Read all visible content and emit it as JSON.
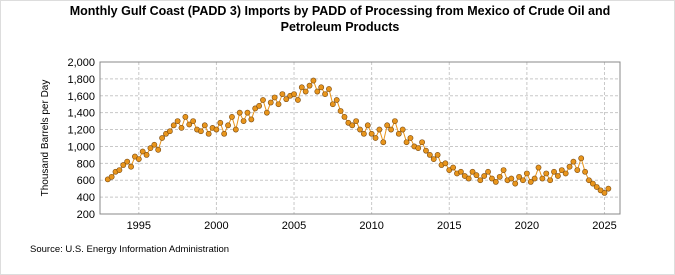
{
  "chart_data": {
    "type": "line",
    "title": "Monthly Gulf Coast (PADD 3) Imports by PADD of Processing from Mexico of Crude Oil and Petroleum Products",
    "y_label": "Thousand Barrels per Day",
    "source": "Source: U.S. Energy Information Administration",
    "x": [
      1993,
      1993.25,
      1993.5,
      1993.75,
      1994,
      1994.25,
      1994.5,
      1994.75,
      1995,
      1995.25,
      1995.5,
      1995.75,
      1996,
      1996.25,
      1996.5,
      1996.75,
      1997,
      1997.25,
      1997.5,
      1997.75,
      1998,
      1998.25,
      1998.5,
      1998.75,
      1999,
      1999.25,
      1999.5,
      1999.75,
      2000,
      2000.25,
      2000.5,
      2000.75,
      2001,
      2001.25,
      2001.5,
      2001.75,
      2002,
      2002.25,
      2002.5,
      2002.75,
      2003,
      2003.25,
      2003.5,
      2003.75,
      2004,
      2004.25,
      2004.5,
      2004.75,
      2005,
      2005.25,
      2005.5,
      2005.75,
      2006,
      2006.25,
      2006.5,
      2006.75,
      2007,
      2007.25,
      2007.5,
      2007.75,
      2008,
      2008.25,
      2008.5,
      2008.75,
      2009,
      2009.25,
      2009.5,
      2009.75,
      2010,
      2010.25,
      2010.5,
      2010.75,
      2011,
      2011.25,
      2011.5,
      2011.75,
      2012,
      2012.25,
      2012.5,
      2012.75,
      2013,
      2013.25,
      2013.5,
      2013.75,
      2014,
      2014.25,
      2014.5,
      2014.75,
      2015,
      2015.25,
      2015.5,
      2015.75,
      2016,
      2016.25,
      2016.5,
      2016.75,
      2017,
      2017.25,
      2017.5,
      2017.75,
      2018,
      2018.25,
      2018.5,
      2018.75,
      2019,
      2019.25,
      2019.5,
      2019.75,
      2020,
      2020.25,
      2020.5,
      2020.75,
      2021,
      2021.25,
      2021.5,
      2021.75,
      2022,
      2022.25,
      2022.5,
      2022.75,
      2023,
      2023.25,
      2023.5,
      2023.75,
      2024,
      2024.25,
      2024.5,
      2024.75,
      2025,
      2025.25
    ],
    "series": [
      {
        "name": "Imports",
        "color": "#e8951c",
        "values": [
          610,
          640,
          700,
          720,
          780,
          820,
          760,
          880,
          850,
          940,
          900,
          980,
          1020,
          960,
          1100,
          1150,
          1180,
          1250,
          1300,
          1220,
          1350,
          1260,
          1300,
          1200,
          1180,
          1250,
          1150,
          1220,
          1200,
          1280,
          1150,
          1250,
          1350,
          1200,
          1400,
          1300,
          1400,
          1320,
          1450,
          1480,
          1550,
          1400,
          1520,
          1580,
          1500,
          1620,
          1560,
          1600,
          1620,
          1550,
          1700,
          1650,
          1720,
          1780,
          1650,
          1700,
          1620,
          1680,
          1500,
          1550,
          1420,
          1350,
          1280,
          1250,
          1300,
          1200,
          1150,
          1250,
          1150,
          1100,
          1200,
          1050,
          1250,
          1200,
          1300,
          1150,
          1200,
          1050,
          1100,
          1000,
          980,
          1050,
          950,
          900,
          850,
          900,
          780,
          800,
          720,
          750,
          680,
          700,
          650,
          620,
          700,
          660,
          600,
          650,
          700,
          620,
          580,
          640,
          720,
          600,
          620,
          560,
          640,
          600,
          680,
          580,
          620,
          750,
          620,
          680,
          600,
          700,
          650,
          720,
          680,
          760,
          820,
          720,
          860,
          700,
          600,
          560,
          520,
          480,
          450,
          500
        ]
      }
    ],
    "xlim": [
      1992.5,
      2026
    ],
    "xticks": [
      1995,
      2000,
      2005,
      2010,
      2015,
      2020,
      2025
    ],
    "ylim": [
      200,
      2000
    ],
    "yticks": [
      200,
      400,
      600,
      800,
      {
        "value": 1000,
        "label": "1,000"
      },
      {
        "value": 1200,
        "label": "1,200"
      },
      {
        "value": 1400,
        "label": "1,400"
      },
      {
        "value": 1600,
        "label": "1,600"
      },
      {
        "value": 1800,
        "label": "1,800"
      },
      {
        "value": 2000,
        "label": "2,000"
      }
    ],
    "grid": true
  }
}
